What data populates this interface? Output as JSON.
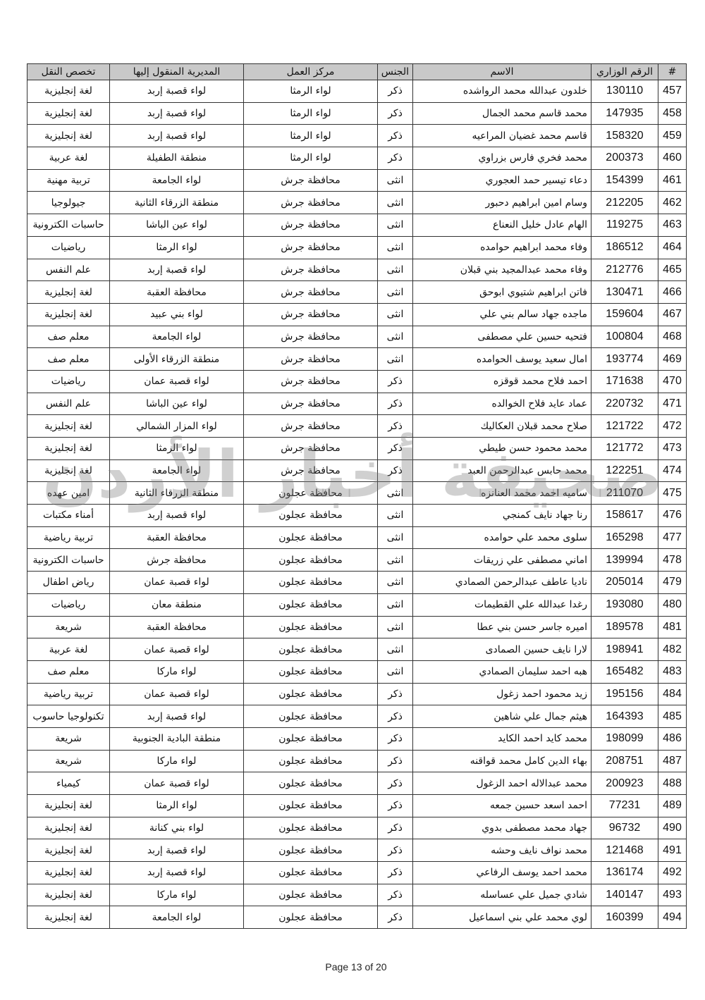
{
  "table": {
    "header": [
      "#",
      "الرقم الوزاري",
      "الاسم",
      "الجنس",
      "مركز العمل",
      "المديرية المنقول إليها",
      "تخصص النقل"
    ],
    "rows": [
      [
        457,
        130110,
        "خلدون عبدالله محمد الرواشده",
        "ذكر",
        "لواء الرمثا",
        "لواء قصبة إربد",
        "لغة إنجليزية"
      ],
      [
        458,
        147935,
        "محمد قاسم محمد الجمال",
        "ذكر",
        "لواء الرمثا",
        "لواء قصبة إربد",
        "لغة إنجليزية"
      ],
      [
        459,
        158320,
        "قاسم محمد غضيان المراعيه",
        "ذكر",
        "لواء الرمثا",
        "لواء قصبة إربد",
        "لغة إنجليزية"
      ],
      [
        460,
        200373,
        "محمد فخري فارس بزراوي",
        "ذكر",
        "لواء الرمثا",
        "منطقة الطفيلة",
        "لغة عربية"
      ],
      [
        461,
        154399,
        "دعاء تيسير حمد العجوري",
        "انثى",
        "محافظة جرش",
        "لواء الجامعة",
        "تربية مهنية"
      ],
      [
        462,
        212205,
        "وسام امين ابراهيم دحبور",
        "انثى",
        "محافظة جرش",
        "منطقة الزرقاء الثانية",
        "جيولوجيا"
      ],
      [
        463,
        119275,
        "الهام عادل خليل النعناع",
        "انثى",
        "محافظة جرش",
        "لواء عين الباشا",
        "حاسبات الكترونية"
      ],
      [
        464,
        186512,
        "وفاء محمد ابراهيم حوامده",
        "انثى",
        "محافظة جرش",
        "لواء الرمثا",
        "رياضيات"
      ],
      [
        465,
        212776,
        "وفاء محمد عبدالمجيد بني قبلان",
        "انثى",
        "محافظة جرش",
        "لواء قصبة إربد",
        "علم النفس"
      ],
      [
        466,
        130471,
        "فاتن ابراهيم شتيوي ابوحق",
        "انثى",
        "محافظة جرش",
        "محافظة العقبة",
        "لغة إنجليزية"
      ],
      [
        467,
        159604,
        "ماجده جهاد سالم بني علي",
        "انثى",
        "محافظة جرش",
        "لواء بني عبيد",
        "لغة إنجليزية"
      ],
      [
        468,
        100804,
        "فتحيه حسين علي مصطفى",
        "انثى",
        "محافظة جرش",
        "لواء الجامعة",
        "معلم صف"
      ],
      [
        469,
        193774,
        "امال سعيد يوسف الحوامده",
        "انثى",
        "محافظة جرش",
        "منطقة الزرقاء الأولى",
        "معلم صف"
      ],
      [
        470,
        171638,
        "احمد فلاح محمد قوقزه",
        "ذكر",
        "محافظة جرش",
        "لواء قصبة عمان",
        "رياضيات"
      ],
      [
        471,
        220732,
        "عماد عايد فلاح الخوالده",
        "ذكر",
        "محافظة جرش",
        "لواء عين الباشا",
        "علم النفس"
      ],
      [
        472,
        121722,
        "صلاح محمد قبلان العكاليك",
        "ذكر",
        "محافظة جرش",
        "لواء المزار الشمالي",
        "لغة إنجليزية"
      ],
      [
        473,
        121772,
        "محمد محمود حسن طيطي",
        "ذكر",
        "محافظة جرش",
        "لواء الرمثا",
        "لغة إنجليزية"
      ],
      [
        474,
        122251,
        "محمد حابس عبدالرحمن العبد",
        "ذكر",
        "محافظة جرش",
        "لواء الجامعة",
        "لغة إنجليزية"
      ],
      [
        475,
        211070,
        "ساميه احمد محمد العنانزه",
        "انثى",
        "محافظة عجلون",
        "منطقة الزرقاء الثانية",
        "امين عهده"
      ],
      [
        476,
        158617,
        "رنا جهاد نايف كمنجي",
        "انثى",
        "محافظة عجلون",
        "لواء قصبة إربد",
        "أمناء مكتبات"
      ],
      [
        477,
        165298,
        "سلوى محمد علي حوامده",
        "انثى",
        "محافظة عجلون",
        "محافظة العقبة",
        "تربية رياضية"
      ],
      [
        478,
        139994,
        "اماني مصطفى علي زريقات",
        "انثى",
        "محافظة عجلون",
        "محافظة جرش",
        "حاسبات الكترونية"
      ],
      [
        479,
        205014,
        "ناديا عاطف عبدالرحمن الصمادي",
        "انثى",
        "محافظة عجلون",
        "لواء قصبة عمان",
        "رياض اطفال"
      ],
      [
        480,
        193080,
        "رغدا عبدالله علي القطيمات",
        "انثى",
        "محافظة عجلون",
        "منطقة معان",
        "رياضيات"
      ],
      [
        481,
        189578,
        "اميره جاسر حسن بني عطا",
        "انثى",
        "محافظة عجلون",
        "محافظة العقبة",
        "شريعة"
      ],
      [
        482,
        198941,
        "لارا نايف حسين الصمادى",
        "انثى",
        "محافظة عجلون",
        "لواء قصبة عمان",
        "لغة عربية"
      ],
      [
        483,
        165482,
        "هبه احمد سليمان الصمادي",
        "انثى",
        "محافظة عجلون",
        "لواء ماركا",
        "معلم صف"
      ],
      [
        484,
        195156,
        "زيد محمود احمد زغول",
        "ذكر",
        "محافظة عجلون",
        "لواء قصبة عمان",
        "تربية رياضية"
      ],
      [
        485,
        164393,
        "هيثم جمال علي شاهين",
        "ذكر",
        "محافظة عجلون",
        "لواء قصبة إربد",
        "تكنولوجيا حاسوب"
      ],
      [
        486,
        198099,
        "محمد كايد احمد الكايد",
        "ذكر",
        "محافظة عجلون",
        "منطقة البادية الجنوبية",
        "شريعة"
      ],
      [
        487,
        208751,
        "بهاء الدين كامل محمد قواقنه",
        "ذكر",
        "محافظة عجلون",
        "لواء ماركا",
        "شريعة"
      ],
      [
        488,
        200923,
        "محمد عبدالاله احمد الزغول",
        "ذكر",
        "محافظة عجلون",
        "لواء قصبة عمان",
        "كيمياء"
      ],
      [
        489,
        77231,
        "احمد اسعد حسين جمعه",
        "ذكر",
        "محافظة عجلون",
        "لواء الرمثا",
        "لغة إنجليزية"
      ],
      [
        490,
        96732,
        "جهاد محمد مصطفى بدوي",
        "ذكر",
        "محافظة عجلون",
        "لواء بني كنانة",
        "لغة إنجليزية"
      ],
      [
        491,
        121468,
        "محمد نواف نايف وحشه",
        "ذكر",
        "محافظة عجلون",
        "لواء قصبة إربد",
        "لغة إنجليزية"
      ],
      [
        492,
        136174,
        "محمد احمد يوسف الرفاعي",
        "ذكر",
        "محافظة عجلون",
        "لواء قصبة إربد",
        "لغة إنجليزية"
      ],
      [
        493,
        140147,
        "شادي جميل علي عساسله",
        "ذكر",
        "محافظة عجلون",
        "لواء ماركا",
        "لغة إنجليزية"
      ],
      [
        494,
        160399,
        "لوي محمد علي بني اسماعيل",
        "ذكر",
        "محافظة عجلون",
        "لواء الجامعة",
        "لغة إنجليزية"
      ]
    ]
  },
  "watermark": "صحيفة أخبار الأردن",
  "footer": "Page 13 of 20"
}
